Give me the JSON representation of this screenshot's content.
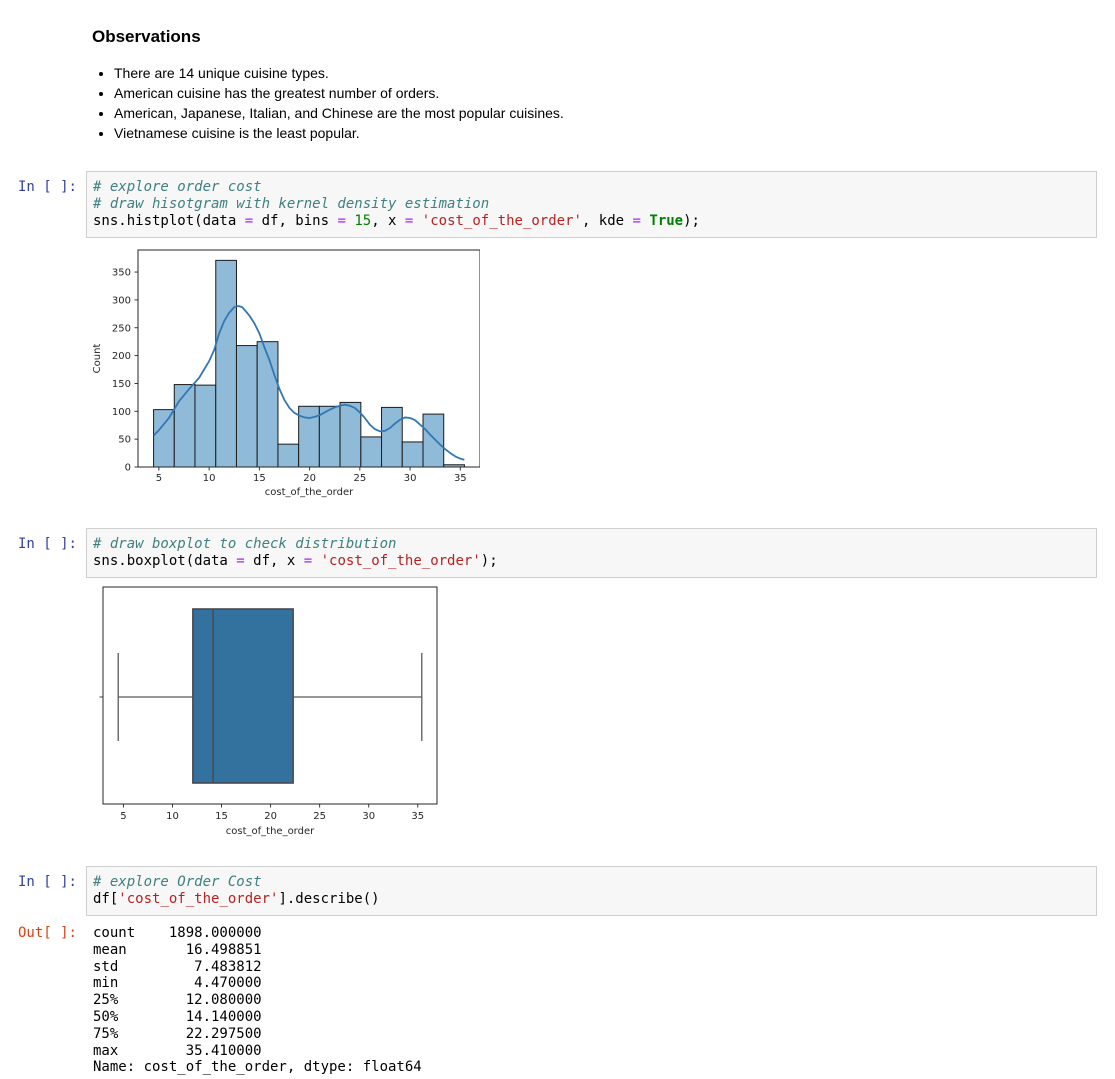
{
  "markdown": {
    "heading": "Observations",
    "bullets": [
      "There are 14 unique cuisine types.",
      "American cuisine has the greatest number of orders.",
      "American, Japanese, Italian, and Chinese are the most popular cuisines.",
      "Vietnamese cuisine is the least popular."
    ]
  },
  "cells": [
    {
      "prompt": "In [ ]:",
      "lines": [
        [
          [
            "cm",
            "# explore order cost"
          ]
        ],
        [
          [
            "cm",
            "# draw hisotgram with kernel density estimation"
          ]
        ],
        [
          [
            "p",
            "sns.histplot(data "
          ],
          [
            "op",
            "="
          ],
          [
            "p",
            " df, bins "
          ],
          [
            "op",
            "="
          ],
          [
            "p",
            " "
          ],
          [
            "num",
            "15"
          ],
          [
            "p",
            ", x "
          ],
          [
            "op",
            "="
          ],
          [
            "p",
            " "
          ],
          [
            "str",
            "'cost_of_the_order'"
          ],
          [
            "p",
            ", kde "
          ],
          [
            "op",
            "="
          ],
          [
            "p",
            " "
          ],
          [
            "kw",
            "True"
          ],
          [
            "p",
            ");"
          ]
        ]
      ]
    },
    {
      "prompt": "In [ ]:",
      "lines": [
        [
          [
            "cm",
            "# draw boxplot to check distribution"
          ]
        ],
        [
          [
            "p",
            "sns.boxplot(data "
          ],
          [
            "op",
            "="
          ],
          [
            "p",
            " df, x "
          ],
          [
            "op",
            "="
          ],
          [
            "p",
            " "
          ],
          [
            "str",
            "'cost_of_the_order'"
          ],
          [
            "p",
            ");"
          ]
        ]
      ]
    },
    {
      "prompt": "In [ ]:",
      "lines": [
        [
          [
            "cm",
            "# explore Order Cost"
          ]
        ],
        [
          [
            "p",
            "df["
          ],
          [
            "str",
            "'cost_of_the_order'"
          ],
          [
            "p",
            "].describe()"
          ]
        ]
      ]
    }
  ],
  "out": {
    "prompt": "Out[ ]:",
    "lines": [
      "count    1898.000000",
      "mean       16.498851",
      "std         7.483812",
      "min         4.470000",
      "25%        12.080000",
      "50%        14.140000",
      "75%        22.297500",
      "max        35.410000",
      "Name: cost_of_the_order, dtype: float64"
    ]
  },
  "colors": {
    "bar_fill": "#8FBBD9",
    "bar_edge": "#1a1a1a",
    "kde_line": "#3277B4",
    "box_fill": "#33719F",
    "box_edge": "#474B52",
    "whisker": "#5a5a5a",
    "spine": "#262626",
    "prompt_in": "#303F9F",
    "prompt_out": "#D84315"
  },
  "chart_data": [
    {
      "type": "bar",
      "subtype": "histogram_with_kde",
      "title": "",
      "xlabel": "cost_of_the_order",
      "ylabel": "Count",
      "xlim": [
        2.92,
        36.96
      ],
      "ylim": [
        0,
        389.6
      ],
      "xticks": [
        5,
        10,
        15,
        20,
        25,
        30,
        35
      ],
      "yticks": [
        0,
        50,
        100,
        150,
        200,
        250,
        300,
        350
      ],
      "bin_edges": [
        4.47,
        6.53,
        8.59,
        10.66,
        12.72,
        14.78,
        16.85,
        18.91,
        20.97,
        23.03,
        25.1,
        27.16,
        29.22,
        31.29,
        33.35,
        35.41
      ],
      "counts": [
        103,
        148,
        147,
        371,
        218,
        225,
        41,
        109,
        109,
        116,
        54,
        107,
        45,
        95,
        4
      ],
      "kde_points": [
        [
          4.5,
          57
        ],
        [
          5,
          66
        ],
        [
          6,
          88
        ],
        [
          7,
          118
        ],
        [
          8,
          140
        ],
        [
          9,
          160
        ],
        [
          10,
          190
        ],
        [
          10.5,
          210
        ],
        [
          11,
          240
        ],
        [
          11.5,
          262
        ],
        [
          12,
          277
        ],
        [
          12.5,
          287
        ],
        [
          12.9,
          289
        ],
        [
          13.3,
          287
        ],
        [
          14,
          272
        ],
        [
          14.5,
          258
        ],
        [
          15,
          240
        ],
        [
          15.5,
          215
        ],
        [
          16,
          192
        ],
        [
          16.5,
          165
        ],
        [
          17,
          140
        ],
        [
          17.5,
          120
        ],
        [
          18,
          106
        ],
        [
          18.5,
          97
        ],
        [
          19,
          92
        ],
        [
          19.5,
          89
        ],
        [
          20,
          88
        ],
        [
          20.5,
          90
        ],
        [
          21,
          93
        ],
        [
          21.5,
          98
        ],
        [
          22,
          103
        ],
        [
          22.5,
          107
        ],
        [
          23,
          110
        ],
        [
          23.5,
          112
        ],
        [
          24,
          110
        ],
        [
          24.5,
          106
        ],
        [
          25,
          98
        ],
        [
          25.5,
          88
        ],
        [
          26,
          76
        ],
        [
          26.5,
          68
        ],
        [
          27,
          64
        ],
        [
          27.5,
          65
        ],
        [
          28,
          70
        ],
        [
          28.5,
          78
        ],
        [
          29,
          85
        ],
        [
          29.5,
          89
        ],
        [
          30,
          88
        ],
        [
          30.5,
          84
        ],
        [
          31,
          76
        ],
        [
          31.5,
          68
        ],
        [
          32,
          58
        ],
        [
          32.5,
          49
        ],
        [
          33,
          40
        ],
        [
          33.5,
          32
        ],
        [
          34,
          25
        ],
        [
          34.5,
          19
        ],
        [
          35,
          15
        ],
        [
          35.4,
          13
        ]
      ],
      "grid": false,
      "legend": false
    },
    {
      "type": "box",
      "title": "",
      "xlabel": "cost_of_the_order",
      "xlim": [
        2.92,
        36.96
      ],
      "xticks": [
        5,
        10,
        15,
        20,
        25,
        30,
        35
      ],
      "stats": {
        "min": 4.47,
        "q1": 12.08,
        "median": 14.14,
        "q3": 22.2975,
        "max": 35.41
      },
      "grid": false,
      "legend": false
    }
  ]
}
